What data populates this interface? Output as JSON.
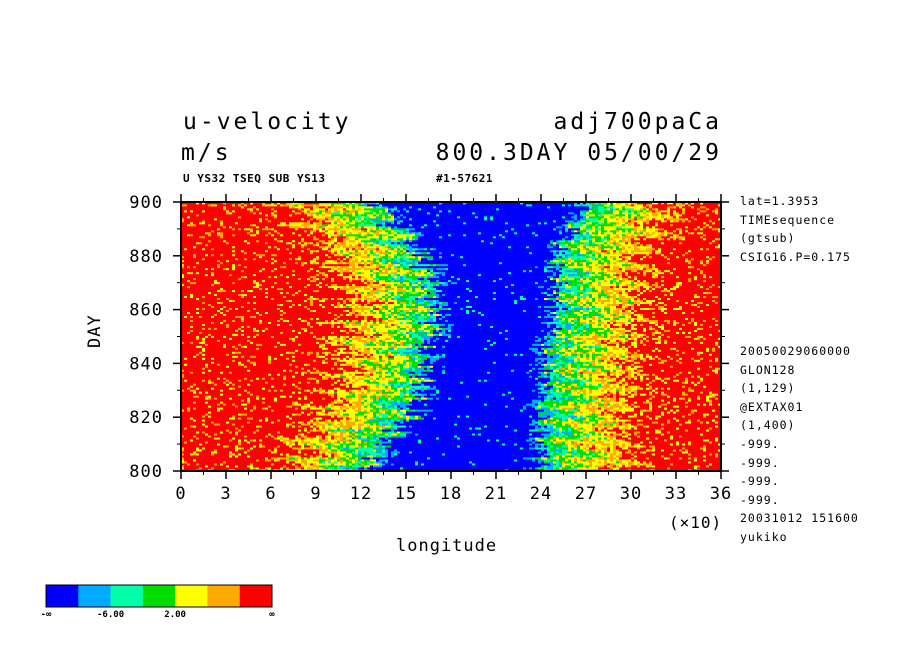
{
  "header": {
    "variable": "u-velocity",
    "units": "m/s",
    "experiment": "adj700paCa",
    "time_label": "800.3DAY 05/00/29",
    "subtitle_left": "U YS32 TSEQ SUB YS13",
    "subtitle_right": "#1-57621"
  },
  "side_info": {
    "top": [
      "lat=1.3953",
      "TIMEsequence",
      "(gtsub)",
      "CSIG16.P=0.175"
    ],
    "bottom": [
      "20050029060000",
      "GLON128",
      "(1,129)",
      "@EXTAX01",
      "(1,400)",
      "-999.",
      "-999.",
      "-999.",
      "-999.",
      "20031012 151600",
      "yukiko"
    ]
  },
  "colorbar": {
    "colors": [
      "#0000ff",
      "#00aaff",
      "#00ffaa",
      "#00dd00",
      "#ffff00",
      "#ffaa00",
      "#ff0000"
    ],
    "labels": [
      "-∞",
      "-6.00",
      "2.00",
      "∞"
    ]
  },
  "chart_data": {
    "type": "heatmap",
    "title": "u-velocity",
    "xlabel": "longitude",
    "ylabel": "DAY",
    "x_ticks": [
      "0",
      "3",
      "6",
      "9",
      "12",
      "15",
      "18",
      "21",
      "24",
      "27",
      "30",
      "33",
      "36"
    ],
    "x_multiplier": "(×10)",
    "y_ticks": [
      "800",
      "820",
      "840",
      "860",
      "880",
      "900"
    ],
    "xlim": [
      0,
      360
    ],
    "ylim": [
      800,
      900
    ],
    "levels": [
      -10,
      -6,
      -2,
      2,
      6,
      10
    ],
    "approx_easterly_core": [
      {
        "day": 800,
        "lon_from": 120,
        "lon_to": 240
      },
      {
        "day": 820,
        "lon_from": 150,
        "lon_to": 240
      },
      {
        "day": 840,
        "lon_from": 165,
        "lon_to": 245
      },
      {
        "day": 860,
        "lon_from": 170,
        "lon_to": 250
      },
      {
        "day": 880,
        "lon_from": 160,
        "lon_to": 250
      },
      {
        "day": 900,
        "lon_from": 130,
        "lon_to": 270
      }
    ]
  }
}
